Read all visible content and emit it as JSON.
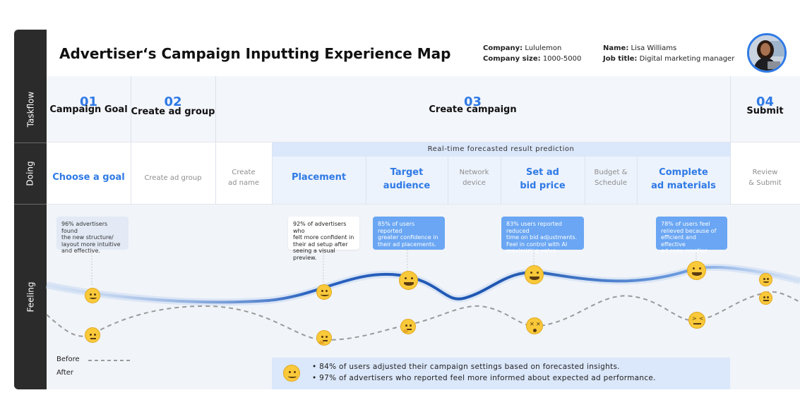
{
  "title": "Advertiser‘s Campaign Inputting Experience Map",
  "meta": {
    "company_label": "Company:",
    "company_value": " Lululemon",
    "size_label": "Company size:",
    "size_value": " 1000-5000",
    "name_label": "Name:",
    "name_value": " Lisa Williams",
    "job_label": "Job title:",
    "job_value": " Digital marketing manager"
  },
  "rows": {
    "taskflow": "Taskflow",
    "doing": "Doing",
    "feeling": "Feeling"
  },
  "stages": [
    {
      "num": "01",
      "name": "Campaign Goal"
    },
    {
      "num": "02",
      "name": "Create ad group"
    },
    {
      "num": "03",
      "name": "Create campaign"
    },
    {
      "num": "04",
      "name": "Submit"
    }
  ],
  "realtime_banner": "Real-time forecasted result prediction",
  "doing": {
    "choose_goal": "Choose a goal",
    "create_ad_group": "Create ad group",
    "create_ad_name": [
      "Create",
      "ad name"
    ],
    "placement": "Placement",
    "target_audience": [
      "Target",
      "audience"
    ],
    "network_device": [
      "Network",
      "device"
    ],
    "set_ad_bid": [
      "Set ad",
      "bid price"
    ],
    "budget_schedule": [
      "Budget &",
      "Schedule"
    ],
    "complete_materials": [
      "Complete",
      "ad materials"
    ],
    "review_submit": [
      "Review",
      "& Submit"
    ]
  },
  "notes": {
    "n1": [
      "96% advertisers found",
      "the new structure/",
      "layout more intuitive",
      "and effective."
    ],
    "n2": [
      "92% of advertisers who",
      "felt more confident in",
      "their ad setup after",
      "seeing a visual preview."
    ],
    "n3": [
      "85% of users reported",
      "greater confidence in",
      "their ad placements."
    ],
    "n4": [
      "83% users reported reduced",
      "time on bid adjustments.",
      "Feel in control with AI",
      "maximizing value."
    ],
    "n5": [
      "78% of users feel",
      "relieved because of",
      "efficient and effective",
      "ad copy creation."
    ]
  },
  "legend": {
    "before": "Before",
    "after": "After"
  },
  "summary": [
    "•  84% of users adjusted their campaign settings based on forecasted insights.",
    "•  97% of advertisers who reported feel more informed about expected ad performance."
  ],
  "colors": {
    "accent": "#2f7ae5",
    "after_curve": "#1e56b0",
    "before_curve": "#9a9a9a",
    "sidebar": "#2b2b2b",
    "emoji": "#f9c93a"
  },
  "icons": [
    "user-avatar",
    "slightly-smiling-face-icon",
    "grinning-face-icon",
    "worried-face-icon",
    "thinking-face-icon",
    "dizzy-face-icon",
    "confounded-face-icon",
    "neutral-face-icon"
  ]
}
